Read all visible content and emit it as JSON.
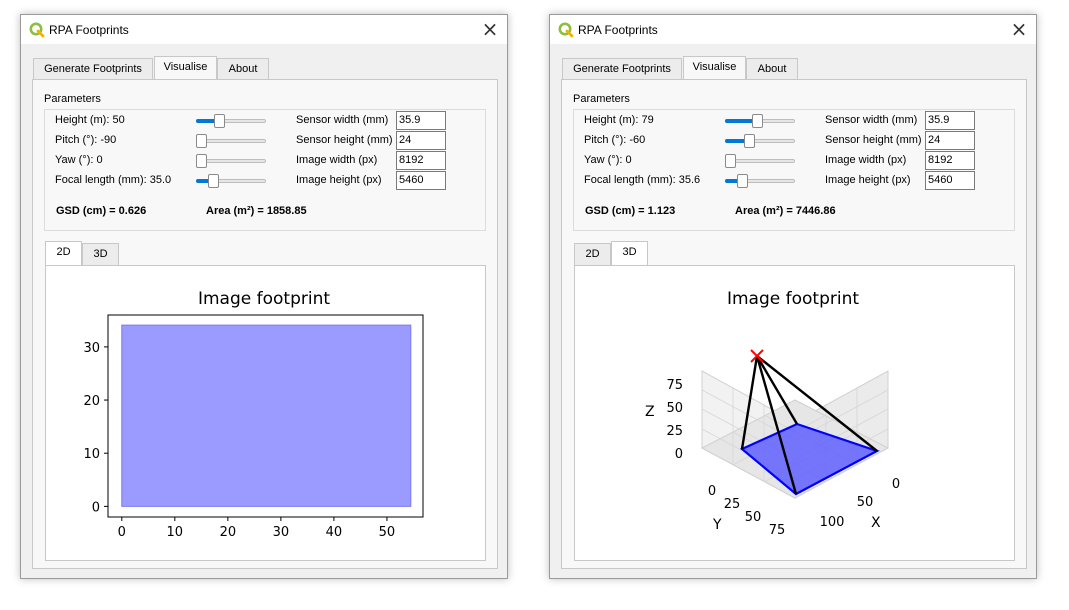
{
  "windows": [
    {
      "title": "RPA Footprints",
      "tabs": [
        "Generate Footprints",
        "Visualise",
        "About"
      ],
      "active_tab": "Visualise",
      "parameters_label": "Parameters",
      "params": [
        {
          "label": "Height (m): 50",
          "slider_fraction": 0.3
        },
        {
          "label": "Pitch (°): -90",
          "slider_fraction": 0.0
        },
        {
          "label": "Yaw (°): 0",
          "slider_fraction": 0.0
        },
        {
          "label": "Focal length (mm): 35.0",
          "slider_fraction": 0.2
        }
      ],
      "sensor": [
        {
          "label": "Sensor width (mm)",
          "value": "35.9"
        },
        {
          "label": "Sensor height (mm)",
          "value": "24"
        },
        {
          "label": "Image width (px)",
          "value": "8192"
        },
        {
          "label": "Image height (px)",
          "value": "5460"
        }
      ],
      "gsd": "GSD (cm) = 0.626",
      "area": "Area (m²) = 1858.85",
      "plot_tabs": [
        "2D",
        "3D"
      ],
      "active_plot_tab": "2D",
      "chart_data": {
        "type": "area",
        "title": "Image footprint",
        "x_ticks": [
          "0",
          "10",
          "20",
          "30",
          "40",
          "50"
        ],
        "y_ticks": [
          "0",
          "10",
          "20",
          "30"
        ],
        "xlim": [
          -2.6,
          56.8
        ],
        "ylim": [
          -2.0,
          36.0
        ],
        "polygon": [
          [
            0,
            0
          ],
          [
            54.5,
            0
          ],
          [
            54.5,
            34.1
          ],
          [
            0,
            34.1
          ]
        ],
        "fill_color": "#9a9aff",
        "edge_color": "#7a7aef"
      }
    },
    {
      "title": "RPA Footprints",
      "tabs": [
        "Generate Footprints",
        "Visualise",
        "About"
      ],
      "active_tab": "Visualise",
      "parameters_label": "Parameters",
      "params": [
        {
          "label": "Height (m): 79",
          "slider_fraction": 0.45
        },
        {
          "label": "Pitch (°): -60",
          "slider_fraction": 0.33
        },
        {
          "label": "Yaw (°): 0",
          "slider_fraction": 0.0
        },
        {
          "label": "Focal length (mm): 35.6",
          "slider_fraction": 0.2
        }
      ],
      "sensor": [
        {
          "label": "Sensor width (mm)",
          "value": "35.9"
        },
        {
          "label": "Sensor height (mm)",
          "value": "24"
        },
        {
          "label": "Image width (px)",
          "value": "8192"
        },
        {
          "label": "Image height (px)",
          "value": "5460"
        }
      ],
      "gsd": "GSD (cm) = 1.123",
      "area": "Area (m²) = 7446.86",
      "plot_tabs": [
        "2D",
        "3D"
      ],
      "active_plot_tab": "3D",
      "chart_data": {
        "type": "3d-footprint",
        "title": "Image footprint",
        "xlabel": "X",
        "ylabel": "Y",
        "zlabel": "Z",
        "x_ticks": [
          "0",
          "50",
          "100"
        ],
        "y_ticks": [
          "0",
          "25",
          "50",
          "75"
        ],
        "z_ticks": [
          "0",
          "25",
          "50",
          "75"
        ],
        "camera_marker_color": "#ff0000",
        "footprint_fill": "#6060ff",
        "footprint_edge": "#0000ff",
        "ray_color": "#000000"
      }
    }
  ]
}
